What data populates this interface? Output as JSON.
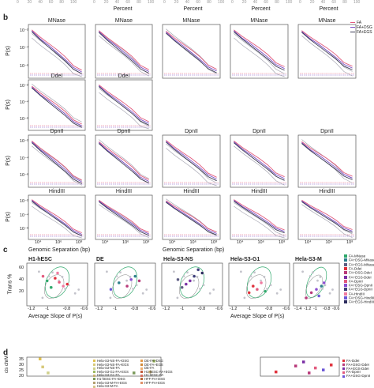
{
  "panel_letters": {
    "b": "b",
    "c": "c",
    "d": "d"
  },
  "top_strip": {
    "percent_label": "Percent",
    "ticks": [
      "0",
      "20",
      "40",
      "60",
      "80",
      "100"
    ]
  },
  "colors": {
    "FA": "#e25a7d",
    "FA_DSG": "#7d4fc7",
    "FA_EGS": "#3a3a55",
    "grey": "#a9a9b4",
    "green": "#2ea86b"
  },
  "chart_data": [
    {
      "type": "line",
      "panel": "b",
      "ylabel": "P(s)",
      "xlabel": "Genomic Separation (bp)",
      "y_ticks": [
        "10⁻²",
        "10⁻⁴",
        "10⁻⁶"
      ],
      "x_ticks": [
        "10⁴",
        "10⁶",
        "10⁸"
      ],
      "x_log_range": [
        3,
        8
      ],
      "y_log_range": [
        -7,
        -1
      ],
      "rows": [
        {
          "titles": [
            "MNase",
            "MNase",
            "MNase",
            "MNase",
            "MNase"
          ],
          "count": 5
        },
        {
          "titles": [
            "DdeI",
            "DdeI"
          ],
          "count": 2
        },
        {
          "titles": [
            "DpnII",
            "DpnII",
            "DpnII",
            "DpnII",
            "DpnII"
          ],
          "count": 5
        },
        {
          "titles": [
            "HindIII",
            "HindIII",
            "HindIII",
            "HindIII",
            "HindIII"
          ],
          "count": 5
        }
      ],
      "series": [
        {
          "name": "FA",
          "color": "#e25a7d",
          "values_log": [
            -1.6,
            -2.4,
            -3.1,
            -3.8,
            -4.6,
            -5.6,
            -6.1
          ]
        },
        {
          "name": "FA+DSG",
          "color": "#7d4fc7",
          "values_log": [
            -1.7,
            -2.6,
            -3.3,
            -4.1,
            -4.9,
            -5.8,
            -6.3
          ]
        },
        {
          "name": "FA+EGS",
          "color": "#3a3a55",
          "values_log": [
            -1.8,
            -2.7,
            -3.5,
            -4.3,
            -5.1,
            -6.0,
            -6.5
          ]
        }
      ],
      "legend": [
        "FA",
        "FA+DSG",
        "FA+EGS"
      ]
    },
    {
      "type": "scatter",
      "panel": "c",
      "ylabel": "Trans %",
      "xlabel": "Average Slope of P(s)",
      "y_ticks": [
        "60",
        "40",
        "20"
      ],
      "titles": [
        "H1-hESC",
        "DE",
        "Hela-S3-NS",
        "Hela-S3-G1",
        "Hela-S3-M"
      ],
      "x_ticks": [
        [
          "-1.2",
          "-1",
          "-0.8",
          "-0.6"
        ],
        [
          "-1.2",
          "-1",
          "-0.8",
          "-0.6"
        ],
        [
          "-1.2",
          "-1",
          "-0.8",
          "-0.6"
        ],
        [
          "-1.2",
          "-1",
          "-0.8",
          "-0.6"
        ],
        [
          "-1.4",
          "-1.2",
          "-1",
          "-0.8",
          "-0.6"
        ]
      ],
      "legend": [
        {
          "label": "FA-MNase",
          "color": "#2ea86b"
        },
        {
          "label": "FA+DSG-MNase",
          "color": "#2d7f8c"
        },
        {
          "label": "FA+EGS-MNase",
          "color": "#5d5d82"
        },
        {
          "label": "FA-DdeI",
          "color": "#e0303b"
        },
        {
          "label": "FA+DSG-DdeI",
          "color": "#b83a7a"
        },
        {
          "label": "FA+EGS-DdeI",
          "color": "#7a2fa5"
        },
        {
          "label": "FA-DpnII",
          "color": "#e25a7d"
        },
        {
          "label": "FA+DSG-DpnII",
          "color": "#8b4fd1"
        },
        {
          "label": "FA+EGS-DpnII",
          "color": "#3e3e7a"
        },
        {
          "label": "FA-HindIII",
          "color": "#f07aa0"
        },
        {
          "label": "FA+DSG-HindIII",
          "color": "#6a56d6"
        },
        {
          "label": "FA+EGS-HindIII",
          "color": "#2c2c5e"
        }
      ],
      "points": [
        [
          {
            "x": -1.05,
            "y": 38
          },
          {
            "x": -0.95,
            "y": 42
          },
          {
            "x": -0.9,
            "y": 36
          },
          {
            "x": -0.85,
            "y": 30
          },
          {
            "x": -1.0,
            "y": 28
          },
          {
            "x": -0.8,
            "y": 33
          },
          {
            "x": -1.1,
            "y": 45
          },
          {
            "x": -0.92,
            "y": 50
          }
        ],
        [
          {
            "x": -1.0,
            "y": 35
          },
          {
            "x": -0.9,
            "y": 30
          },
          {
            "x": -0.85,
            "y": 40
          },
          {
            "x": -1.1,
            "y": 25
          },
          {
            "x": -0.8,
            "y": 45
          },
          {
            "x": -0.75,
            "y": 38
          }
        ],
        [
          {
            "x": -1.1,
            "y": 40
          },
          {
            "x": -1.0,
            "y": 33
          },
          {
            "x": -0.9,
            "y": 45
          },
          {
            "x": -0.8,
            "y": 50
          },
          {
            "x": -1.05,
            "y": 28
          },
          {
            "x": -0.95,
            "y": 38
          },
          {
            "x": -0.85,
            "y": 55
          }
        ],
        [
          {
            "x": -1.0,
            "y": 30
          },
          {
            "x": -0.95,
            "y": 25
          },
          {
            "x": -0.9,
            "y": 35
          },
          {
            "x": -0.85,
            "y": 22
          },
          {
            "x": -1.05,
            "y": 20
          }
        ],
        [
          {
            "x": -1.1,
            "y": 20
          },
          {
            "x": -1.0,
            "y": 25
          },
          {
            "x": -0.95,
            "y": 15
          },
          {
            "x": -0.9,
            "y": 30
          },
          {
            "x": -1.2,
            "y": 12
          },
          {
            "x": -0.85,
            "y": 35
          }
        ]
      ]
    },
    {
      "type": "scatter",
      "panel": "d",
      "ylabel": "cis chrM",
      "y_ticks": [
        "35",
        "30",
        "25",
        "20"
      ],
      "legend_left": [
        "Hela-S3-NS-FA+DSG",
        "Hela-S3-NS-FA+EGS",
        "Hela-S3-NS-FA",
        "Hela-S3-G1-FA+EGS",
        "Hela-S3-G1-FA",
        "H1-hESC-FA+DSG",
        "Hela-S3-M-FA+EGS",
        "Hela-S3-M-FA"
      ],
      "legend_left_colors": [
        "#e0c050",
        "#d7c97a",
        "#cfd08a",
        "#9cb960",
        "#c9b070",
        "#7a9a5a",
        "#b3a070",
        "#d6c48a"
      ],
      "legend_mid": [
        "DE-FA+DSG",
        "DE-FA+EGS",
        "DE-FA",
        "H1-hESC-FA+EGS",
        "H1-hESC-FA",
        "HFF-FA+DSG",
        "HFF-FA+EGS"
      ],
      "legend_mid_colors": [
        "#e39a4a",
        "#d28a3a",
        "#f0b070",
        "#c05a3a",
        "#d87060",
        "#b56a3a",
        "#e0906a"
      ],
      "legend_right": [
        {
          "label": "FA-DdeI",
          "color": "#e0303b"
        },
        {
          "label": "FA+DSG-DdeI",
          "color": "#b83a7a"
        },
        {
          "label": "FA+EGS-DdeI",
          "color": "#7a2fa5"
        },
        {
          "label": "FA-DpnII",
          "color": "#e25a7d"
        },
        {
          "label": "FA+DSG-DpnII",
          "color": "#6a56d6"
        }
      ],
      "left_points": [
        {
          "x": 0.1,
          "y": 35
        },
        {
          "x": 0.12,
          "y": 27
        },
        {
          "x": 0.16,
          "y": 21
        },
        {
          "x": 0.95,
          "y": 33
        },
        {
          "x": 0.92,
          "y": 22
        },
        {
          "x": 0.8,
          "y": 21
        }
      ],
      "right_points": [
        {
          "x": 0.2,
          "y": 22
        },
        {
          "x": 0.45,
          "y": 28
        },
        {
          "x": 0.55,
          "y": 32
        },
        {
          "x": 0.7,
          "y": 26
        },
        {
          "x": 0.8,
          "y": 24
        },
        {
          "x": 0.9,
          "y": 29
        },
        {
          "x": 0.62,
          "y": 21
        }
      ]
    }
  ]
}
